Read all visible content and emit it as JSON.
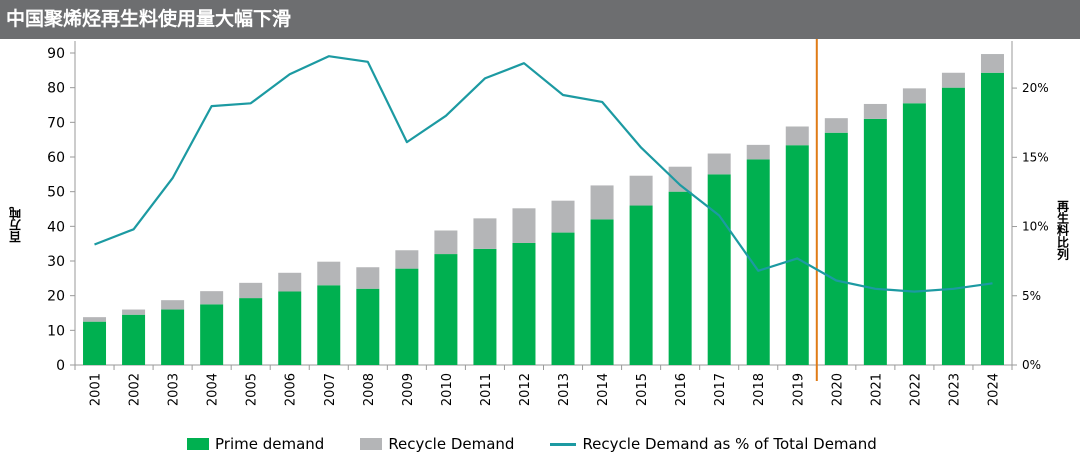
{
  "header": {
    "title": "中国聚烯烃再生料使用量大幅下滑"
  },
  "chart_data": {
    "type": "bar",
    "stacked": true,
    "categories": [
      "2001",
      "2002",
      "2003",
      "2004",
      "2005",
      "2006",
      "2007",
      "2008",
      "2009",
      "2010",
      "2011",
      "2012",
      "2013",
      "2014",
      "2015",
      "2016",
      "2017",
      "2018",
      "2019",
      "2020",
      "2021",
      "2022",
      "2023",
      "2024"
    ],
    "series": [
      {
        "name": "Prime demand",
        "type": "bar",
        "axis": "left",
        "values": [
          12.5,
          14.5,
          16,
          17.5,
          19.3,
          21.2,
          23,
          22,
          27.8,
          32,
          33.5,
          35.2,
          38.2,
          42,
          46,
          50,
          55,
          59.3,
          63.4,
          67,
          71,
          75.5,
          80,
          84.3
        ]
      },
      {
        "name": "Recycle Demand",
        "type": "bar",
        "axis": "left",
        "values": [
          1.3,
          1.5,
          2.7,
          3.8,
          4.4,
          5.4,
          6.8,
          6.2,
          5.3,
          6.8,
          8.8,
          10,
          9.2,
          9.8,
          8.6,
          7.2,
          6,
          4.2,
          5.4,
          4.2,
          4.3,
          4.3,
          4.3,
          5.4
        ]
      },
      {
        "name": "Recycle Demand as % of Total Demand",
        "type": "line",
        "axis": "right",
        "values": [
          8.7,
          9.8,
          13.5,
          18.7,
          18.9,
          21,
          22.3,
          21.9,
          16.1,
          18,
          20.7,
          21.8,
          19.5,
          19,
          15.7,
          13,
          10.8,
          6.8,
          7.7,
          6.1,
          5.5,
          5.3,
          5.5,
          5.9
        ]
      }
    ],
    "ylabel_left": "百万吨",
    "ylabel_right": "再生料比列",
    "ylim_left": [
      0,
      90
    ],
    "yticks_left": [
      "0",
      "10",
      "20",
      "30",
      "40",
      "50",
      "60",
      "70",
      "80",
      "90"
    ],
    "ylim_right": [
      0,
      23.4
    ],
    "yticks_right": [
      "0%",
      "5%",
      "10%",
      "15%",
      "20%"
    ],
    "yticks_right_values": [
      0,
      5,
      10,
      15,
      20
    ],
    "marker_after_category": "2019",
    "grid": false,
    "legend_position": "bottom",
    "colors": {
      "prime": "#00b050",
      "recycle": "#b4b5b7",
      "line": "#1c9aa2",
      "marker": "#e07b16",
      "header_bg": "#6d6e70"
    }
  }
}
